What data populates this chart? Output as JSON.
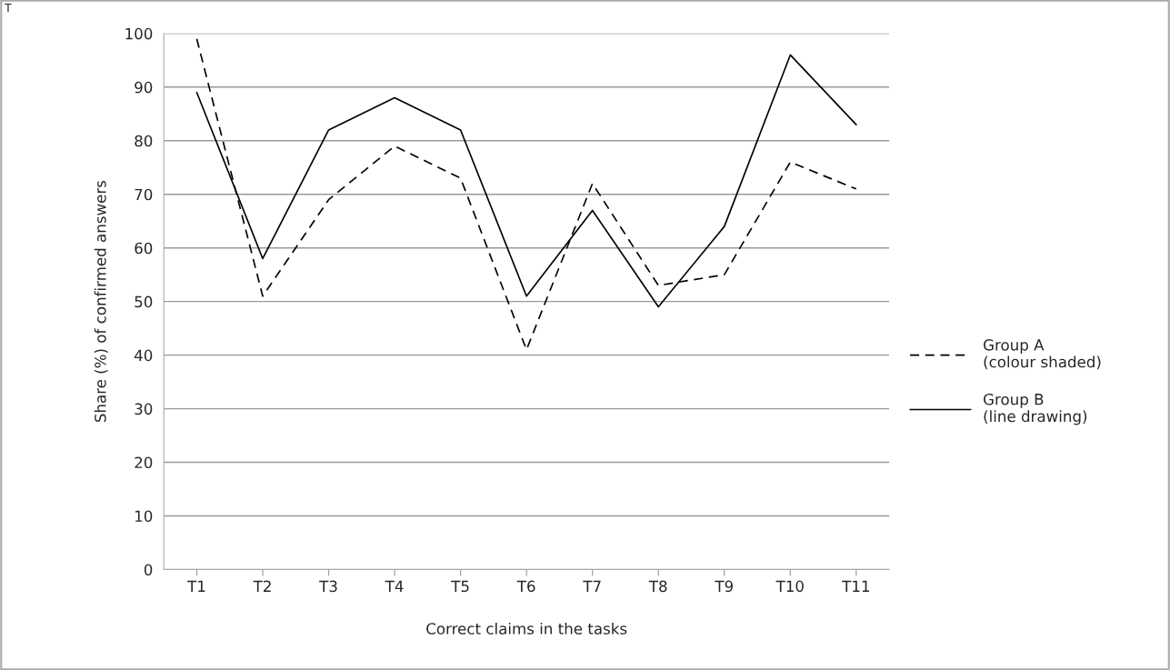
{
  "chart_data": {
    "type": "line",
    "xlabel": "Correct claims in the tasks",
    "ylabel": "Share (%) of confirmed answers",
    "categories": [
      "T1",
      "T2",
      "T3",
      "T4",
      "T5",
      "T6",
      "T7",
      "T8",
      "T9",
      "T10",
      "T11"
    ],
    "series": [
      {
        "name": "Group A\n(colour shaded)",
        "color": "#000000",
        "line_style": "dashed",
        "values": [
          99,
          51,
          69,
          79,
          73,
          41,
          72,
          53,
          55,
          76,
          71
        ]
      },
      {
        "name": "Group B\n(line drawing)",
        "color": "#000000",
        "line_style": "solid",
        "values": [
          89,
          58,
          82,
          88,
          82,
          51,
          67,
          49,
          64,
          96,
          83
        ]
      }
    ],
    "ylim": [
      0,
      100
    ],
    "yticks": [
      0,
      10,
      20,
      30,
      40,
      50,
      60,
      70,
      80,
      90,
      100
    ],
    "grid": "y",
    "legend": "right",
    "marker": "none",
    "annotations": [
      "T"
    ]
  }
}
